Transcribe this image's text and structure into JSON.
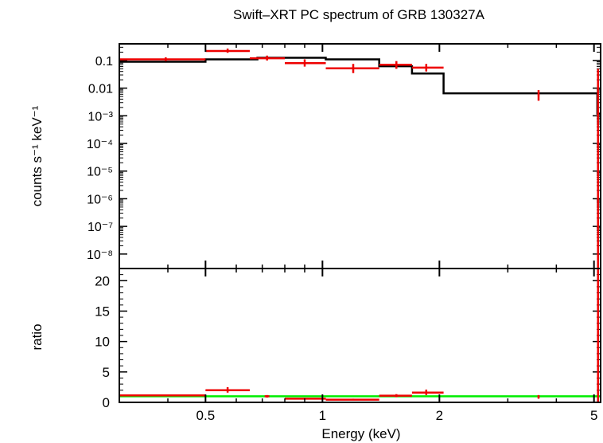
{
  "chart_data": [
    {
      "type": "line",
      "panel": "top",
      "title": "Swift–XRT PC spectrum of GRB 130327A",
      "xlabel": "",
      "ylabel": "counts s⁻¹ keV⁻¹",
      "xscale": "log",
      "yscale": "log",
      "xlim": [
        0.3,
        5.2
      ],
      "ylim": [
        3e-09,
        0.4
      ],
      "y_ticks": [
        {
          "value": 0.1,
          "label": "0.1"
        },
        {
          "value": 0.01,
          "label": "0.01"
        },
        {
          "value": 0.001,
          "label": "10⁻³"
        },
        {
          "value": 0.0001,
          "label": "10⁻⁴"
        },
        {
          "value": 1e-05,
          "label": "10⁻⁵"
        },
        {
          "value": 1e-06,
          "label": "10⁻⁶"
        },
        {
          "value": 1e-07,
          "label": "10⁻⁷"
        },
        {
          "value": 1e-08,
          "label": "10⁻⁸"
        }
      ],
      "data_points": [
        {
          "x": 0.395,
          "xerr": [
            0.3,
            0.5
          ],
          "y": 0.11,
          "yerr": [
            0.095,
            0.13
          ]
        },
        {
          "x": 0.57,
          "xerr": [
            0.5,
            0.65
          ],
          "y": 0.22,
          "yerr": [
            0.19,
            0.27
          ]
        },
        {
          "x": 0.72,
          "xerr": [
            0.65,
            0.8
          ],
          "y": 0.12,
          "yerr": [
            0.1,
            0.15
          ]
        },
        {
          "x": 0.9,
          "xerr": [
            0.8,
            1.02
          ],
          "y": 0.08,
          "yerr": [
            0.06,
            0.11
          ]
        },
        {
          "x": 1.2,
          "xerr": [
            1.02,
            1.4
          ],
          "y": 0.052,
          "yerr": [
            0.035,
            0.075
          ]
        },
        {
          "x": 1.55,
          "xerr": [
            1.4,
            1.7
          ],
          "y": 0.07,
          "yerr": [
            0.05,
            0.095
          ]
        },
        {
          "x": 1.85,
          "xerr": [
            1.7,
            2.05
          ],
          "y": 0.055,
          "yerr": [
            0.04,
            0.075
          ]
        },
        {
          "x": 3.6,
          "xerr": [
            3.58,
            3.62
          ],
          "y": 0.0055,
          "yerr": [
            0.0035,
            0.0085
          ]
        },
        {
          "x": 5.12,
          "xerr": [
            5.1,
            5.14
          ],
          "y": 0.025,
          "yerr": [
            3e-09,
            0.05
          ]
        }
      ],
      "model_steps": [
        {
          "x0": 0.3,
          "x1": 0.5,
          "y": 0.09
        },
        {
          "x0": 0.5,
          "x1": 0.68,
          "y": 0.11
        },
        {
          "x0": 0.68,
          "x1": 1.02,
          "y": 0.125
        },
        {
          "x0": 1.02,
          "x1": 1.4,
          "y": 0.11
        },
        {
          "x0": 1.4,
          "x1": 1.7,
          "y": 0.062
        },
        {
          "x0": 1.7,
          "x1": 2.05,
          "y": 0.034
        },
        {
          "x0": 2.05,
          "x1": 5.1,
          "y": 0.0065
        },
        {
          "x0": 5.1,
          "x1": 5.2,
          "y": 0.0012
        }
      ]
    },
    {
      "type": "line",
      "panel": "bottom",
      "xlabel": "Energy (keV)",
      "ylabel": "ratio",
      "xscale": "log",
      "xlim": [
        0.3,
        5.2
      ],
      "ylim": [
        0,
        22
      ],
      "x_ticks": [
        {
          "value": 0.5,
          "label": "0.5"
        },
        {
          "value": 1,
          "label": "1"
        },
        {
          "value": 2,
          "label": "2"
        },
        {
          "value": 5,
          "label": "5"
        }
      ],
      "y_ticks": [
        {
          "value": 0,
          "label": "0"
        },
        {
          "value": 5,
          "label": "5"
        },
        {
          "value": 10,
          "label": "10"
        },
        {
          "value": 15,
          "label": "15"
        },
        {
          "value": 20,
          "label": "20"
        }
      ],
      "reference_line": 1,
      "data_points": [
        {
          "x": 0.395,
          "xerr": [
            0.3,
            0.5
          ],
          "y": 1.15,
          "yerr": [
            1.0,
            1.3
          ]
        },
        {
          "x": 0.57,
          "xerr": [
            0.5,
            0.65
          ],
          "y": 2.0,
          "yerr": [
            1.6,
            2.5
          ]
        },
        {
          "x": 0.72,
          "xerr": [
            0.71,
            0.73
          ],
          "y": 1.0,
          "yerr": [
            0.8,
            1.2
          ]
        },
        {
          "x": 0.9,
          "xerr": [
            0.8,
            1.02
          ],
          "y": 0.6,
          "yerr": [
            0.45,
            0.75
          ]
        },
        {
          "x": 1.2,
          "xerr": [
            1.02,
            1.4
          ],
          "y": 0.45,
          "yerr": [
            0.35,
            0.6
          ]
        },
        {
          "x": 1.55,
          "xerr": [
            1.4,
            1.7
          ],
          "y": 1.1,
          "yerr": [
            0.85,
            1.35
          ]
        },
        {
          "x": 1.85,
          "xerr": [
            1.7,
            2.05
          ],
          "y": 1.6,
          "yerr": [
            1.2,
            2.1
          ]
        },
        {
          "x": 3.6,
          "xerr": [
            3.58,
            3.62
          ],
          "y": 0.9,
          "yerr": [
            0.6,
            1.2
          ]
        },
        {
          "x": 5.12,
          "xerr": [
            5.1,
            5.14
          ],
          "y": 21,
          "yerr": [
            0,
            22
          ]
        }
      ]
    }
  ],
  "colors": {
    "data": "#ee0000",
    "model": "#000000",
    "ratio_line": "#00ee00",
    "axes": "#000000"
  }
}
